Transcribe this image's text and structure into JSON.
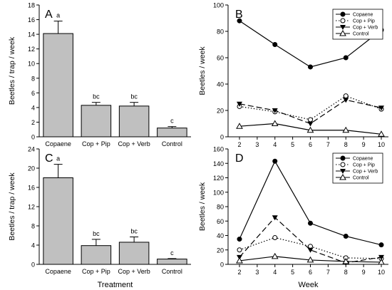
{
  "chart_data": [
    {
      "panel": "A",
      "type": "bar",
      "ylabel": "Beetles / trap / week",
      "categories": [
        "Copaene",
        "Cop + Pip",
        "Cop + Verb",
        "Control"
      ],
      "values": [
        14.1,
        4.3,
        4.2,
        1.2
      ],
      "errors": [
        1.7,
        0.4,
        0.5,
        0.2
      ],
      "letters": [
        "a",
        "bc",
        "bc",
        "c"
      ],
      "ylim": [
        0,
        18
      ],
      "yticks": [
        0,
        2,
        4,
        6,
        8,
        10,
        12,
        14,
        16,
        18
      ],
      "bar_color": "#c0c0c0"
    },
    {
      "panel": "B",
      "type": "line",
      "ylabel": "Beetles / week",
      "x": [
        2,
        4,
        6,
        8,
        10
      ],
      "xticks": [
        2,
        3,
        4,
        5,
        6,
        7,
        8,
        9,
        10
      ],
      "ylim": [
        0,
        100
      ],
      "yticks": [
        0,
        20,
        40,
        60,
        80,
        100
      ],
      "series": [
        {
          "name": "Copaene",
          "values": [
            88,
            70,
            53,
            60,
            81
          ],
          "line": "solid",
          "marker": "filled-circle"
        },
        {
          "name": "Cop + Pip",
          "values": [
            23,
            19,
            13,
            31,
            21
          ],
          "line": "dotted",
          "marker": "open-circle"
        },
        {
          "name": "Cop + Verb",
          "values": [
            25,
            20,
            10,
            28,
            22
          ],
          "line": "dashed",
          "marker": "filled-triangle-down"
        },
        {
          "name": "Control",
          "values": [
            8,
            10,
            5,
            5,
            2
          ],
          "line": "solid",
          "marker": "open-triangle-up"
        }
      ],
      "legend": "top-right"
    },
    {
      "panel": "C",
      "type": "bar",
      "ylabel": "Beetles / trap / week",
      "xlabel": "Treatment",
      "categories": [
        "Copaene",
        "Cop + Pip",
        "Cop + Verb",
        "Control"
      ],
      "values": [
        18.0,
        3.9,
        4.6,
        1.1
      ],
      "errors": [
        2.8,
        1.3,
        1.1,
        0.1
      ],
      "letters": [
        "a",
        "bc",
        "bc",
        "c"
      ],
      "ylim": [
        0,
        24
      ],
      "yticks": [
        0,
        4,
        8,
        12,
        16,
        20,
        24
      ],
      "bar_color": "#c0c0c0"
    },
    {
      "panel": "D",
      "type": "line",
      "ylabel": "Beetles / week",
      "xlabel": "Week",
      "x": [
        2,
        4,
        6,
        8,
        10
      ],
      "xticks": [
        2,
        3,
        4,
        5,
        6,
        7,
        8,
        9,
        10
      ],
      "ylim": [
        0,
        160
      ],
      "yticks": [
        0,
        20,
        40,
        60,
        80,
        100,
        120,
        140,
        160
      ],
      "series": [
        {
          "name": "Copaene",
          "values": [
            35,
            143,
            57,
            39,
            27
          ],
          "line": "solid",
          "marker": "filled-circle"
        },
        {
          "name": "Cop + Pip",
          "values": [
            20,
            37,
            25,
            9,
            8
          ],
          "line": "dotted",
          "marker": "open-circle"
        },
        {
          "name": "Cop + Verb",
          "values": [
            10,
            65,
            20,
            2,
            10
          ],
          "line": "dashed",
          "marker": "filled-triangle-down"
        },
        {
          "name": "Control",
          "values": [
            5,
            11,
            6,
            4,
            3
          ],
          "line": "solid",
          "marker": "open-triangle-up"
        }
      ],
      "legend": "top-right"
    }
  ]
}
